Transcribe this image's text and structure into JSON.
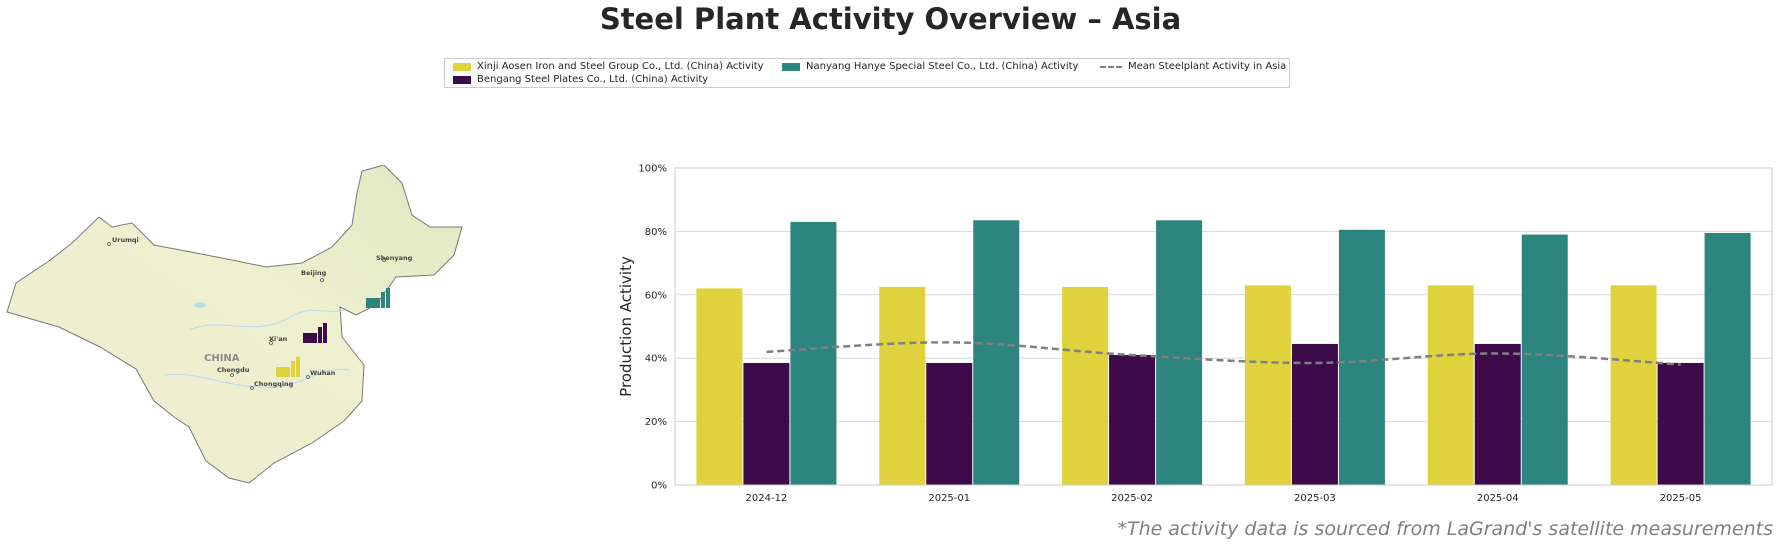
{
  "title": "Steel Plant Activity Overview – Asia",
  "footnote": "*The activity data is sourced from LaGrand's satellite measurements",
  "legend": [
    {
      "label": "Xinji Aosen Iron and Steel Group Co., Ltd. (China) Activity",
      "color": "#e0d23d",
      "kind": "bar"
    },
    {
      "label": "Bengang Steel Plates Co., Ltd. (China) Activity",
      "color": "#3d0a4a",
      "kind": "bar"
    },
    {
      "label": "Nanyang Hanye Special Steel Co., Ltd. (China) Activity",
      "color": "#2d8580",
      "kind": "bar"
    },
    {
      "label": "Mean Steelplant Activity in Asia",
      "color": "#808080",
      "kind": "line"
    }
  ],
  "map": {
    "country_label": "CHINA",
    "cities": [
      "Urumqi",
      "Beijing",
      "Shenyang",
      "Xi'an",
      "Chengdu",
      "Chongqing",
      "Wuhan"
    ],
    "plant_icons": [
      {
        "name": "factory-icon",
        "color": "#e0d23d"
      },
      {
        "name": "factory-icon",
        "color": "#3d0a4a"
      },
      {
        "name": "factory-icon",
        "color": "#2d8580"
      }
    ]
  },
  "chart_data": {
    "type": "bar",
    "categories": [
      "2024-12",
      "2025-01",
      "2025-02",
      "2025-03",
      "2025-04",
      "2025-05"
    ],
    "series": [
      {
        "name": "Xinji Aosen Iron and Steel Group Co., Ltd. (China) Activity",
        "color": "#e0d23d",
        "values": [
          62,
          62.5,
          62.5,
          63,
          63,
          63
        ]
      },
      {
        "name": "Bengang Steel Plates Co., Ltd. (China) Activity",
        "color": "#3d0a4a",
        "values": [
          38.5,
          38.5,
          41,
          44.5,
          44.5,
          38.5
        ]
      },
      {
        "name": "Nanyang Hanye Special Steel Co., Ltd. (China) Activity",
        "color": "#2d8580",
        "values": [
          83,
          83.5,
          83.5,
          80.5,
          79,
          79.5
        ]
      }
    ],
    "line_series": {
      "name": "Mean Steelplant Activity in Asia",
      "color": "#808080",
      "values": [
        42,
        45,
        41,
        38.5,
        41.5,
        38
      ]
    },
    "ylabel": "Production Activity",
    "xlabel": "",
    "ylim": [
      0,
      100
    ],
    "yticks": [
      "0%",
      "20%",
      "40%",
      "60%",
      "80%",
      "100%"
    ],
    "ytick_values": [
      0,
      20,
      40,
      60,
      80,
      100
    ],
    "grid": true
  }
}
